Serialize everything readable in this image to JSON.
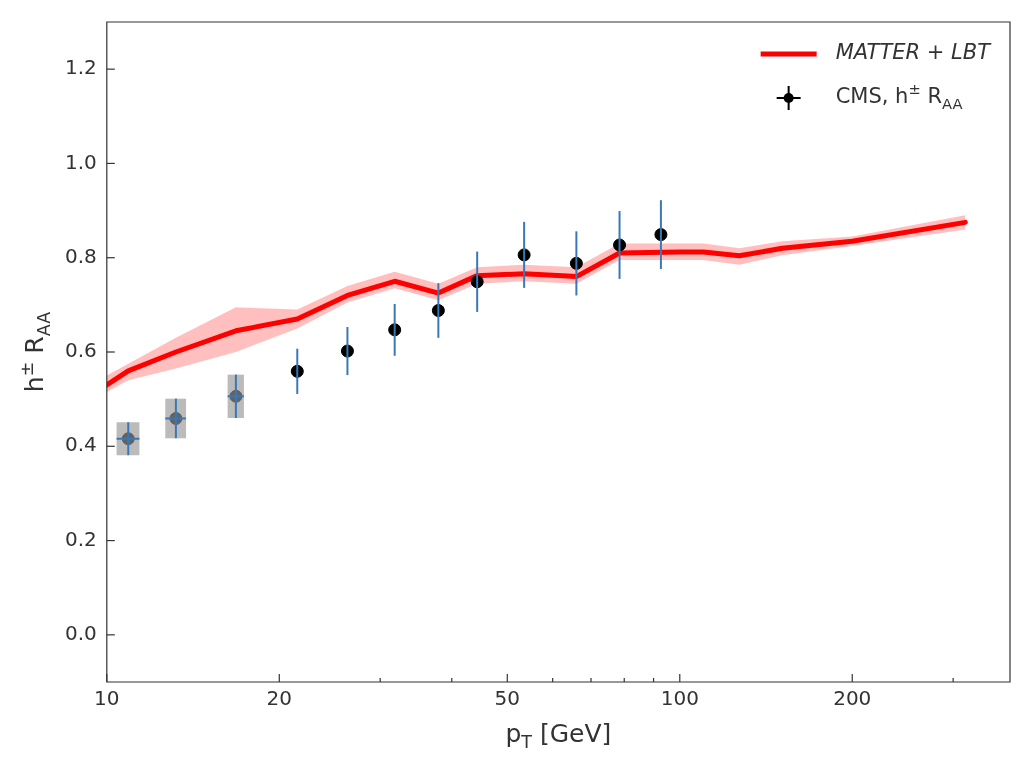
{
  "chart_data": {
    "type": "line",
    "xlabel": "p$_{T}$ [GeV]",
    "ylabel": "h$^{±}$ R$_{AA}$",
    "log": "x",
    "grid": false,
    "legend": "top right",
    "xlim": [
      10,
      377
    ],
    "xticks": [
      10,
      20,
      {
        "value": 30,
        "label": null
      },
      {
        "value": 40,
        "label": null
      },
      50,
      {
        "value": 60,
        "label": null
      },
      {
        "value": 70,
        "label": null
      },
      {
        "value": 80,
        "label": null
      },
      {
        "value": 90,
        "label": null
      },
      100,
      200,
      {
        "value": 300,
        "label": null
      }
    ],
    "ylim": [
      -0.1,
      1.3
    ],
    "yticks": [
      {
        "value": 0,
        "label": "0.0"
      },
      {
        "value": 0.2,
        "label": "0.2"
      },
      {
        "value": 0.4,
        "label": "0.4"
      },
      {
        "value": 0.6,
        "label": "0.6"
      },
      {
        "value": 0.8,
        "label": "0.8"
      },
      {
        "value": 1,
        "label": "1.0"
      },
      {
        "value": 1.2,
        "label": "1.2"
      }
    ],
    "series": [
      {
        "name": "MATTER + LBT",
        "color": "#ff0000",
        "x": [
          10,
          10.9,
          13.2,
          16.8,
          21.5,
          26.3,
          31.8,
          37.9,
          44.3,
          53.5,
          66,
          78.5,
          100,
          110,
          127,
          151,
          200,
          315
        ],
        "values": [
          0.53,
          0.56,
          0.6,
          0.645,
          0.67,
          0.72,
          0.75,
          0.725,
          0.762,
          0.766,
          0.76,
          0.81,
          0.812,
          0.812,
          0.804,
          0.82,
          0.835,
          0.875
        ],
        "lower": [
          0.515,
          0.54,
          0.565,
          0.6,
          0.65,
          0.705,
          0.735,
          0.71,
          0.745,
          0.75,
          0.745,
          0.795,
          0.795,
          0.795,
          0.785,
          0.805,
          0.825,
          0.86
        ],
        "upper": [
          0.55,
          0.575,
          0.63,
          0.695,
          0.69,
          0.74,
          0.77,
          0.745,
          0.78,
          0.785,
          0.78,
          0.83,
          0.83,
          0.83,
          0.82,
          0.835,
          0.845,
          0.89
        ]
      },
      {
        "type": "scatter",
        "name": "CMS, h$^{±}$ R$_{AA}$",
        "color": "#000000",
        "marker": "circle",
        "x": [
          10.9,
          13.2,
          16.8,
          21.5,
          26.3,
          31.8,
          37.9,
          44.3,
          53.5,
          66,
          78.5,
          92.7
        ],
        "values": [
          0.416,
          0.459,
          0.506,
          0.559,
          0.602,
          0.647,
          0.688,
          0.749,
          0.806,
          0.788,
          0.827,
          0.849
        ],
        "errors": [
          0.035,
          0.042,
          0.046,
          0.048,
          0.051,
          0.055,
          0.058,
          0.064,
          0.07,
          0.068,
          0.072,
          0.073
        ],
        "xerrors": [
          0.5,
          0.55,
          0.55,
          null,
          null,
          null,
          null,
          null,
          null,
          null,
          null,
          null
        ]
      }
    ]
  }
}
